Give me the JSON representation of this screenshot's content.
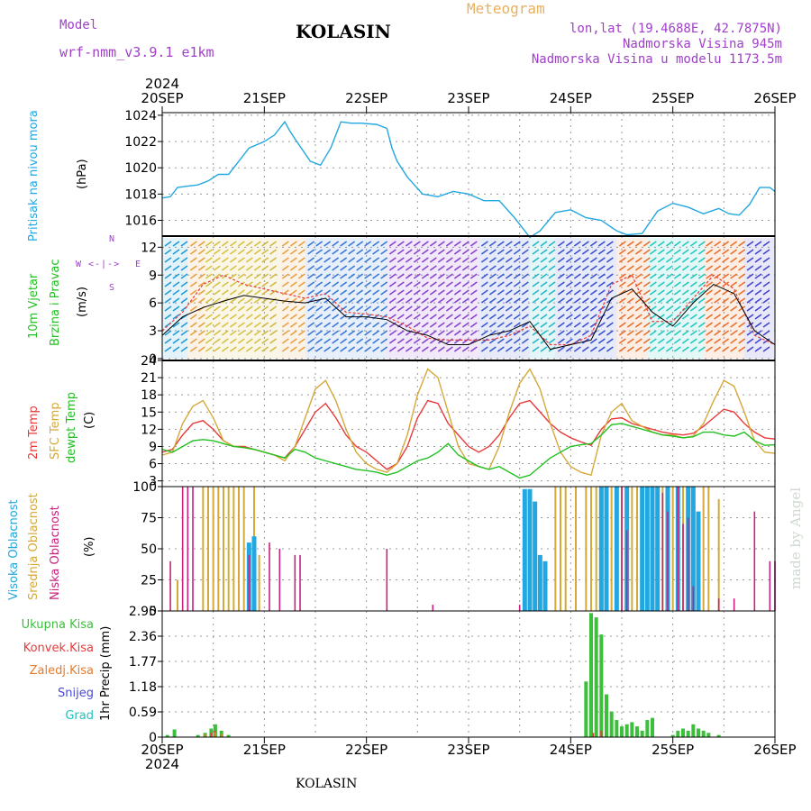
{
  "header": {
    "model_label": "Model",
    "model_name": "wrf-nmm_v3.9.1  e1km",
    "title": "Meteogram",
    "city": "KOLASIN",
    "coords": "lon,lat (19.4688E, 42.7875N)",
    "elev": "Nadmorska Visina 945m",
    "elev_model": "Nadmorska Visina u modelu 1173.5m",
    "year": "2024",
    "footer_city": "KOLASIN",
    "credit": "made by Angel"
  },
  "colors": {
    "pressure": "#22a7e0",
    "wind_label": "#22c022",
    "temp2m": "#e83a3a",
    "sfc": "#d4a93a",
    "dew": "#22c022",
    "high_cloud": "#22a7e0",
    "mid_cloud": "#d4a93a",
    "low_cloud": "#c8227e",
    "precip_total": "#3cc03c",
    "precip_conv": "#e83a3a",
    "precip_frozen": "#e87a2a",
    "snow": "#4848d8",
    "hail": "#22c0c0",
    "header_purple": "#a040c8",
    "header_orange": "#e8b060"
  },
  "panels": {
    "pressure": {
      "label": "Pritisak na nivou mora",
      "unit": "(hPa)"
    },
    "wind": {
      "label1": "10m Vjetar",
      "label2": "Brzina i Pravac",
      "unit": "(m/s)",
      "compass_n": "N",
      "compass_s": "S",
      "compass_w": "W",
      "compass_e": "E",
      "compass_arrows": "<-|->"
    },
    "temp": {
      "label1": "2m Temp",
      "label2": "SFC Temp",
      "label3": "dewpt Temp",
      "unit": "(C)"
    },
    "cloud": {
      "label1": "Visoka Oblacnost",
      "label2": "Srednja Oblacnost",
      "label3": "Niska Oblacnost",
      "unit": "(%)"
    },
    "precip": {
      "legend": [
        "Ukupna Kisa",
        "Konvek.Kisa",
        "Zaledj.Kisa",
        "Snijeg",
        "Grad"
      ],
      "unit": "1hr Precip (mm)"
    }
  },
  "chart_data": {
    "type": "line",
    "x_dates": [
      "20SEP",
      "21SEP",
      "22SEP",
      "23SEP",
      "24SEP",
      "25SEP",
      "26SEP"
    ],
    "pressure": {
      "ylim": [
        1014.8,
        1024.2
      ],
      "yticks": [
        1016,
        1018,
        1020,
        1022,
        1024
      ],
      "x": [
        0,
        0.08,
        0.15,
        0.25,
        0.35,
        0.45,
        0.55,
        0.65,
        0.75,
        0.85,
        1.0,
        1.1,
        1.2,
        1.25,
        1.3,
        1.45,
        1.55,
        1.65,
        1.75,
        1.85,
        1.95,
        2.1,
        2.2,
        2.25,
        2.3,
        2.4,
        2.55,
        2.7,
        2.85,
        3.0,
        3.15,
        3.3,
        3.45,
        3.6,
        3.7,
        3.85,
        4.0,
        4.15,
        4.3,
        4.45,
        4.55,
        4.7,
        4.85,
        5.0,
        5.15,
        5.3,
        5.45,
        5.55,
        5.65,
        5.75,
        5.85,
        5.95,
        6.0
      ],
      "values": [
        1017.7,
        1017.8,
        1018.5,
        1018.6,
        1018.7,
        1019.0,
        1019.5,
        1019.5,
        1020.5,
        1021.5,
        1022.0,
        1022.5,
        1023.5,
        1022.8,
        1022.2,
        1020.5,
        1020.2,
        1021.5,
        1023.5,
        1023.4,
        1023.4,
        1023.3,
        1023.0,
        1021.5,
        1020.5,
        1019.3,
        1018.0,
        1017.8,
        1018.2,
        1018.0,
        1017.5,
        1017.5,
        1016.2,
        1014.7,
        1015.2,
        1016.6,
        1016.8,
        1016.2,
        1016.0,
        1015.2,
        1014.9,
        1015.0,
        1016.7,
        1017.3,
        1017.0,
        1016.5,
        1016.9,
        1016.5,
        1016.4,
        1017.2,
        1018.5,
        1018.5,
        1018.2
      ]
    },
    "wind": {
      "ylim": [
        -0.2,
        13.2
      ],
      "yticks": [
        0,
        3,
        6,
        9,
        12
      ],
      "x": [
        0,
        0.2,
        0.4,
        0.6,
        0.8,
        1.0,
        1.2,
        1.4,
        1.6,
        1.8,
        2.0,
        2.2,
        2.4,
        2.6,
        2.8,
        3.0,
        3.2,
        3.4,
        3.6,
        3.8,
        4.0,
        4.2,
        4.4,
        4.6,
        4.8,
        5.0,
        5.2,
        5.4,
        5.6,
        5.8,
        6.0
      ],
      "speed": [
        2.5,
        4.5,
        5.5,
        6.2,
        6.8,
        6.5,
        6.2,
        6.0,
        6.5,
        4.5,
        4.5,
        4.2,
        3.0,
        2.5,
        1.5,
        1.5,
        2.5,
        3.0,
        4.0,
        1.0,
        1.5,
        2.0,
        6.5,
        7.5,
        5.0,
        3.5,
        6.0,
        8.0,
        7.0,
        3.0,
        1.5
      ],
      "gust": [
        3.0,
        5.0,
        8.0,
        9.0,
        8.0,
        7.5,
        7.0,
        6.5,
        7.0,
        5.0,
        4.8,
        4.5,
        3.5,
        2.2,
        2.0,
        2.0,
        2.0,
        2.5,
        3.5,
        1.5,
        1.5,
        2.5,
        8.0,
        9.0,
        4.0,
        4.0,
        6.5,
        9.0,
        7.5,
        2.5,
        1.5
      ]
    },
    "temp": {
      "ylim": [
        2,
        24
      ],
      "yticks": [
        3,
        6,
        9,
        12,
        15,
        18,
        21,
        24
      ],
      "x": [
        0,
        0.1,
        0.2,
        0.3,
        0.4,
        0.5,
        0.6,
        0.7,
        0.8,
        0.9,
        1.0,
        1.1,
        1.2,
        1.3,
        1.4,
        1.5,
        1.6,
        1.7,
        1.8,
        1.9,
        2.0,
        2.1,
        2.2,
        2.3,
        2.4,
        2.5,
        2.6,
        2.7,
        2.8,
        2.9,
        3.0,
        3.1,
        3.2,
        3.3,
        3.4,
        3.5,
        3.6,
        3.7,
        3.8,
        3.9,
        4.0,
        4.1,
        4.2,
        4.3,
        4.4,
        4.5,
        4.6,
        4.7,
        4.8,
        4.9,
        5.0,
        5.1,
        5.2,
        5.3,
        5.4,
        5.5,
        5.6,
        5.7,
        5.8,
        5.9,
        6.0
      ],
      "series": [
        {
          "key": "t2m",
          "values": [
            8,
            8.5,
            11,
            13,
            13.5,
            12,
            10,
            9,
            9,
            8.5,
            8,
            7.5,
            7,
            9,
            12,
            15,
            16.5,
            14,
            11,
            9,
            8,
            6.5,
            5,
            6,
            9,
            14,
            17,
            16.5,
            13,
            11,
            9,
            8,
            9,
            11,
            14,
            16.5,
            17,
            15,
            13,
            11.5,
            10.5,
            9.8,
            9.2,
            12,
            13.8,
            14,
            13,
            12.5,
            12,
            11.5,
            11.2,
            11,
            11.3,
            12.5,
            14,
            15.5,
            15,
            13,
            11.5,
            10.5,
            10.3
          ]
        },
        {
          "key": "tsfc",
          "values": [
            7.5,
            8,
            13,
            16,
            17,
            14,
            10,
            9,
            8.8,
            8.5,
            8,
            7.5,
            6.5,
            9,
            14,
            19,
            20.5,
            17,
            12,
            8,
            6,
            5,
            4.5,
            6,
            11,
            18,
            22.5,
            21,
            15,
            9,
            6,
            5.5,
            5,
            9,
            15,
            20,
            22.5,
            19,
            13,
            8,
            5.5,
            4.5,
            4,
            11,
            15,
            16.5,
            13.5,
            12.5,
            11.5,
            11,
            11,
            10.5,
            10.8,
            13,
            17,
            20.5,
            19.5,
            15,
            10,
            8,
            7.8
          ]
        },
        {
          "key": "td",
          "values": [
            8.5,
            8,
            9,
            10,
            10.2,
            10,
            9.5,
            9,
            8.8,
            8.5,
            8,
            7.5,
            7,
            8.5,
            8,
            7,
            6.5,
            6,
            5.5,
            5,
            4.8,
            4.5,
            4,
            4.5,
            5.5,
            6.5,
            7,
            8,
            9.5,
            7.5,
            6.5,
            5.5,
            5,
            5.5,
            4.5,
            3.5,
            4,
            5.5,
            7,
            8,
            9,
            9.3,
            9.5,
            11,
            12.8,
            13,
            12.5,
            12,
            11.5,
            11,
            10.8,
            10.5,
            10.7,
            11.5,
            11.5,
            11,
            10.8,
            11.5,
            10,
            9.2,
            9.3
          ]
        }
      ]
    },
    "cloud": {
      "ylim": [
        0,
        100
      ],
      "yticks": [
        0,
        25,
        50,
        75,
        100
      ],
      "high": [
        [
          0.85,
          55
        ],
        [
          0.9,
          60
        ],
        [
          3.55,
          98
        ],
        [
          3.6,
          98
        ],
        [
          3.65,
          88
        ],
        [
          3.7,
          45
        ],
        [
          3.75,
          40
        ],
        [
          4.3,
          100
        ],
        [
          4.35,
          100
        ],
        [
          4.45,
          100
        ],
        [
          4.55,
          100
        ],
        [
          4.7,
          100
        ],
        [
          4.75,
          100
        ],
        [
          4.8,
          100
        ],
        [
          4.85,
          100
        ],
        [
          4.95,
          100
        ],
        [
          5.05,
          100
        ],
        [
          5.15,
          100
        ],
        [
          5.2,
          100
        ],
        [
          5.25,
          80
        ]
      ],
      "mid": [
        [
          0.15,
          25
        ],
        [
          0.4,
          100
        ],
        [
          0.45,
          100
        ],
        [
          0.5,
          100
        ],
        [
          0.55,
          100
        ],
        [
          0.6,
          100
        ],
        [
          0.65,
          100
        ],
        [
          0.7,
          100
        ],
        [
          0.75,
          100
        ],
        [
          0.8,
          100
        ],
        [
          0.9,
          100
        ],
        [
          0.95,
          45
        ],
        [
          3.85,
          100
        ],
        [
          3.9,
          100
        ],
        [
          3.95,
          100
        ],
        [
          4.05,
          100
        ],
        [
          4.15,
          100
        ],
        [
          4.2,
          100
        ],
        [
          4.25,
          100
        ],
        [
          4.4,
          100
        ],
        [
          4.5,
          100
        ],
        [
          4.6,
          100
        ],
        [
          4.65,
          100
        ],
        [
          4.9,
          100
        ],
        [
          5.0,
          100
        ],
        [
          5.1,
          100
        ],
        [
          5.3,
          100
        ],
        [
          5.35,
          100
        ],
        [
          5.45,
          90
        ]
      ],
      "low": [
        [
          0.08,
          40
        ],
        [
          0.2,
          100
        ],
        [
          0.25,
          100
        ],
        [
          0.3,
          100
        ],
        [
          0.85,
          45
        ],
        [
          1.05,
          55
        ],
        [
          1.15,
          50
        ],
        [
          1.3,
          45
        ],
        [
          1.35,
          45
        ],
        [
          2.2,
          50
        ],
        [
          2.65,
          5
        ],
        [
          3.5,
          5
        ],
        [
          4.5,
          100
        ],
        [
          4.55,
          65
        ],
        [
          4.9,
          95
        ],
        [
          4.95,
          80
        ],
        [
          5.05,
          100
        ],
        [
          5.1,
          70
        ],
        [
          5.15,
          75
        ],
        [
          5.2,
          20
        ],
        [
          5.45,
          10
        ],
        [
          5.6,
          10
        ],
        [
          5.8,
          80
        ],
        [
          5.95,
          40
        ],
        [
          6.0,
          40
        ]
      ]
    },
    "precip": {
      "ylim": [
        0,
        2.95
      ],
      "yticks": [
        0,
        0.59,
        1.18,
        1.77,
        2.36,
        2.95
      ],
      "total": [
        [
          0.05,
          0.05
        ],
        [
          0.12,
          0.18
        ],
        [
          0.35,
          0.05
        ],
        [
          0.42,
          0.1
        ],
        [
          0.48,
          0.2
        ],
        [
          0.52,
          0.3
        ],
        [
          0.58,
          0.15
        ],
        [
          0.65,
          0.05
        ],
        [
          4.15,
          1.3
        ],
        [
          4.2,
          2.9
        ],
        [
          4.25,
          2.8
        ],
        [
          4.3,
          2.4
        ],
        [
          4.35,
          1.0
        ],
        [
          4.4,
          0.6
        ],
        [
          4.45,
          0.4
        ],
        [
          4.5,
          0.25
        ],
        [
          4.55,
          0.3
        ],
        [
          4.6,
          0.35
        ],
        [
          4.65,
          0.25
        ],
        [
          4.7,
          0.15
        ],
        [
          4.75,
          0.4
        ],
        [
          4.8,
          0.45
        ],
        [
          5.0,
          0.05
        ],
        [
          5.05,
          0.15
        ],
        [
          5.1,
          0.2
        ],
        [
          5.15,
          0.15
        ],
        [
          5.2,
          0.3
        ],
        [
          5.25,
          0.2
        ],
        [
          5.3,
          0.15
        ],
        [
          5.35,
          0.1
        ],
        [
          5.45,
          0.05
        ]
      ],
      "convective": [
        [
          0.48,
          0.1
        ],
        [
          0.52,
          0.15
        ],
        [
          4.22,
          0.1
        ],
        [
          4.3,
          0.15
        ]
      ],
      "frozen": [
        [
          0.42,
          0.08
        ],
        [
          0.52,
          0.12
        ],
        [
          0.58,
          0.08
        ]
      ]
    }
  }
}
